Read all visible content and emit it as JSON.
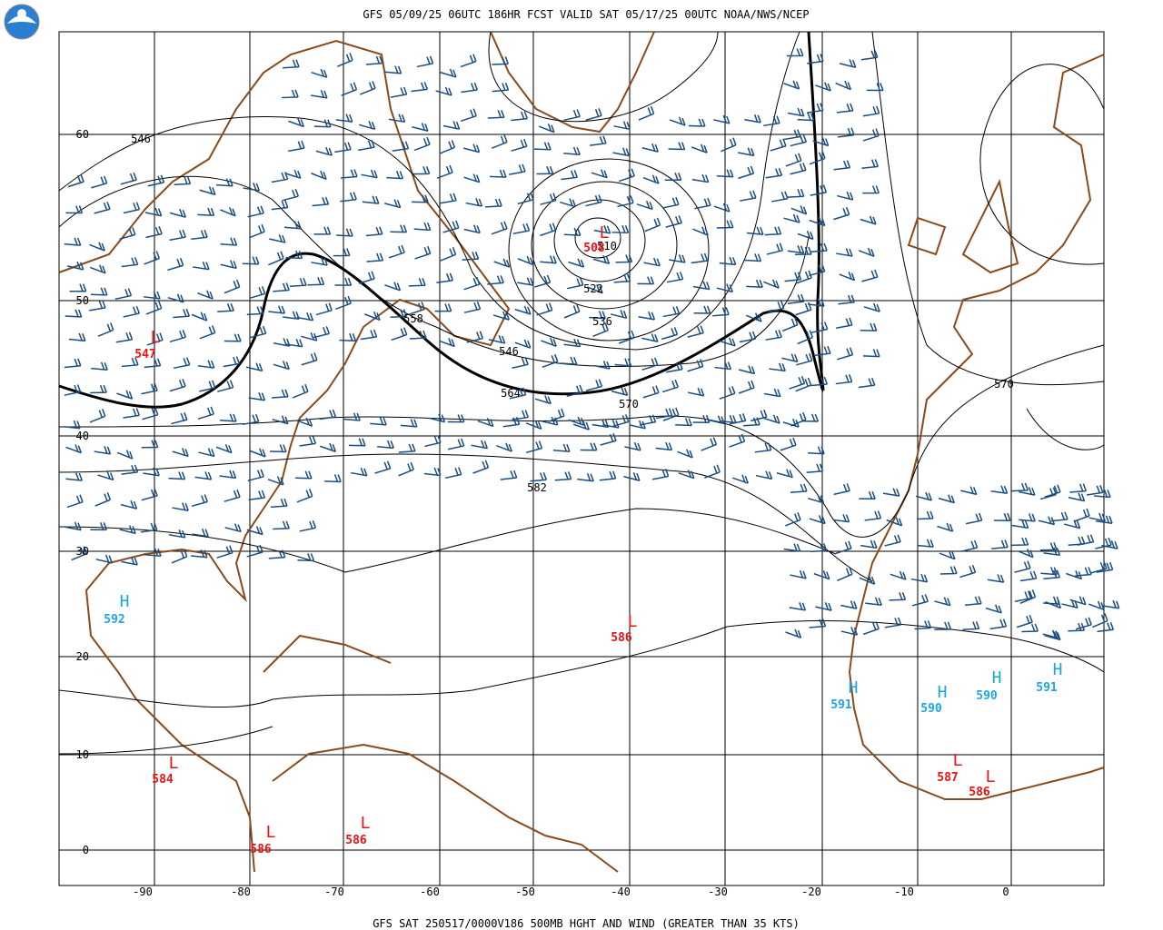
{
  "header": {
    "title": "GFS 05/09/25 06UTC 186HR FCST VALID SAT 05/17/25 00UTC NOAA/NWS/NCEP"
  },
  "footer": {
    "caption": "GFS SAT 250517/0000V186 500MB HGHT AND WIND (GREATER THAN 35 KTS)"
  },
  "map": {
    "lon_labels": [
      "-90",
      "-80",
      "-70",
      "-60",
      "-50",
      "-40",
      "-30",
      "-20",
      "-10",
      "0"
    ],
    "lat_labels": [
      "60",
      "50",
      "40",
      "30",
      "20",
      "10",
      "0"
    ],
    "contour_labels": [
      "546",
      "558",
      "546",
      "564",
      "570",
      "582",
      "522",
      "536",
      "510",
      "570"
    ],
    "centers": [
      {
        "symbol": "L",
        "value": "508"
      },
      {
        "symbol": "L",
        "value": "547"
      },
      {
        "symbol": "H",
        "value": "592"
      },
      {
        "symbol": "L",
        "value": "586"
      },
      {
        "symbol": "H",
        "value": "591"
      },
      {
        "symbol": "H",
        "value": "590"
      },
      {
        "symbol": "H",
        "value": "590"
      },
      {
        "symbol": "H",
        "value": "591"
      },
      {
        "symbol": "L",
        "value": "584"
      },
      {
        "symbol": "L",
        "value": "586"
      },
      {
        "symbol": "L",
        "value": "586"
      },
      {
        "symbol": "L",
        "value": "587"
      },
      {
        "symbol": "L",
        "value": "586"
      }
    ]
  }
}
